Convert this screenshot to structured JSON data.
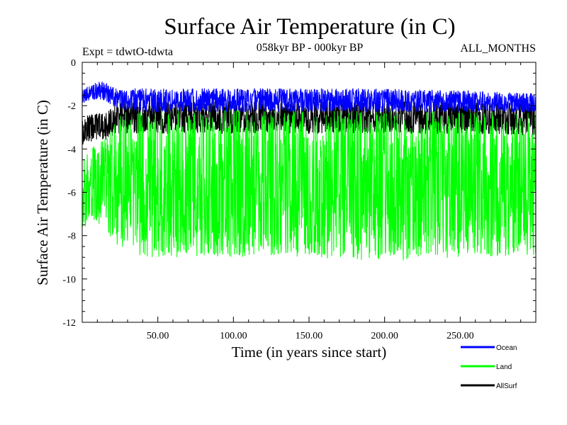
{
  "chart_data": {
    "type": "line",
    "title": "Surface Air Temperature (in C)",
    "subtitle_left": "Expt = tdwtO-tdwta",
    "subtitle_center": "058kyr BP - 000kyr BP",
    "subtitle_right": "ALL_MONTHS",
    "xlabel": "Time (in years since start)",
    "ylabel": "Surface Air Temperature (in C)",
    "xlim": [
      0,
      300
    ],
    "ylim": [
      -12,
      0
    ],
    "x_ticks": [
      50,
      100,
      150,
      200,
      250
    ],
    "x_tick_labels": [
      "50.00",
      "100.00",
      "150.00",
      "200.00",
      "250.00"
    ],
    "y_ticks": [
      0,
      -2,
      -4,
      -6,
      -8,
      -10,
      -12
    ],
    "y_tick_labels": [
      "0",
      "-2",
      "-4",
      "-6",
      "-8",
      "-10",
      "-12"
    ],
    "legend_position": "bottom-right",
    "series": [
      {
        "name": "Ocean",
        "color": "#0000ff",
        "x": [
          0,
          5,
          10,
          15,
          20,
          25,
          30,
          40,
          50,
          75,
          100,
          150,
          200,
          250,
          300
        ],
        "upper": [
          -1.2,
          -1.1,
          -0.9,
          -0.9,
          -1.1,
          -1.2,
          -1.2,
          -1.2,
          -1.2,
          -1.2,
          -1.2,
          -1.2,
          -1.2,
          -1.3,
          -1.4
        ],
        "lower": [
          -1.9,
          -1.8,
          -1.7,
          -1.8,
          -2.0,
          -2.2,
          -2.3,
          -2.3,
          -2.3,
          -2.3,
          -2.3,
          -2.3,
          -2.3,
          -2.3,
          -2.3
        ]
      },
      {
        "name": "Land",
        "color": "#00ff00",
        "x": [
          0,
          5,
          10,
          15,
          20,
          25,
          30,
          40,
          50,
          75,
          100,
          150,
          200,
          250,
          300
        ],
        "upper": [
          -4.5,
          -4.0,
          -3.7,
          -3.5,
          -2.8,
          -2.4,
          -2.2,
          -2.2,
          -2.2,
          -2.2,
          -2.2,
          -2.2,
          -2.2,
          -2.2,
          -2.3
        ],
        "lower": [
          -7.8,
          -7.6,
          -7.5,
          -7.6,
          -8.2,
          -8.6,
          -8.9,
          -9.0,
          -9.0,
          -9.0,
          -9.0,
          -9.0,
          -9.2,
          -9.0,
          -8.9
        ]
      },
      {
        "name": "AllSurf",
        "color": "#000000",
        "x": [
          0,
          5,
          10,
          15,
          20,
          25,
          30,
          40,
          50,
          75,
          100,
          150,
          200,
          250,
          300
        ],
        "upper": [
          -2.5,
          -2.4,
          -2.3,
          -2.4,
          -2.0,
          -1.9,
          -1.8,
          -1.8,
          -1.8,
          -1.8,
          -1.8,
          -1.8,
          -1.8,
          -1.8,
          -1.9
        ],
        "lower": [
          -3.8,
          -3.7,
          -3.6,
          -3.6,
          -3.4,
          -3.3,
          -3.3,
          -3.3,
          -3.3,
          -3.3,
          -3.3,
          -3.3,
          -3.3,
          -3.3,
          -3.4
        ]
      }
    ]
  }
}
